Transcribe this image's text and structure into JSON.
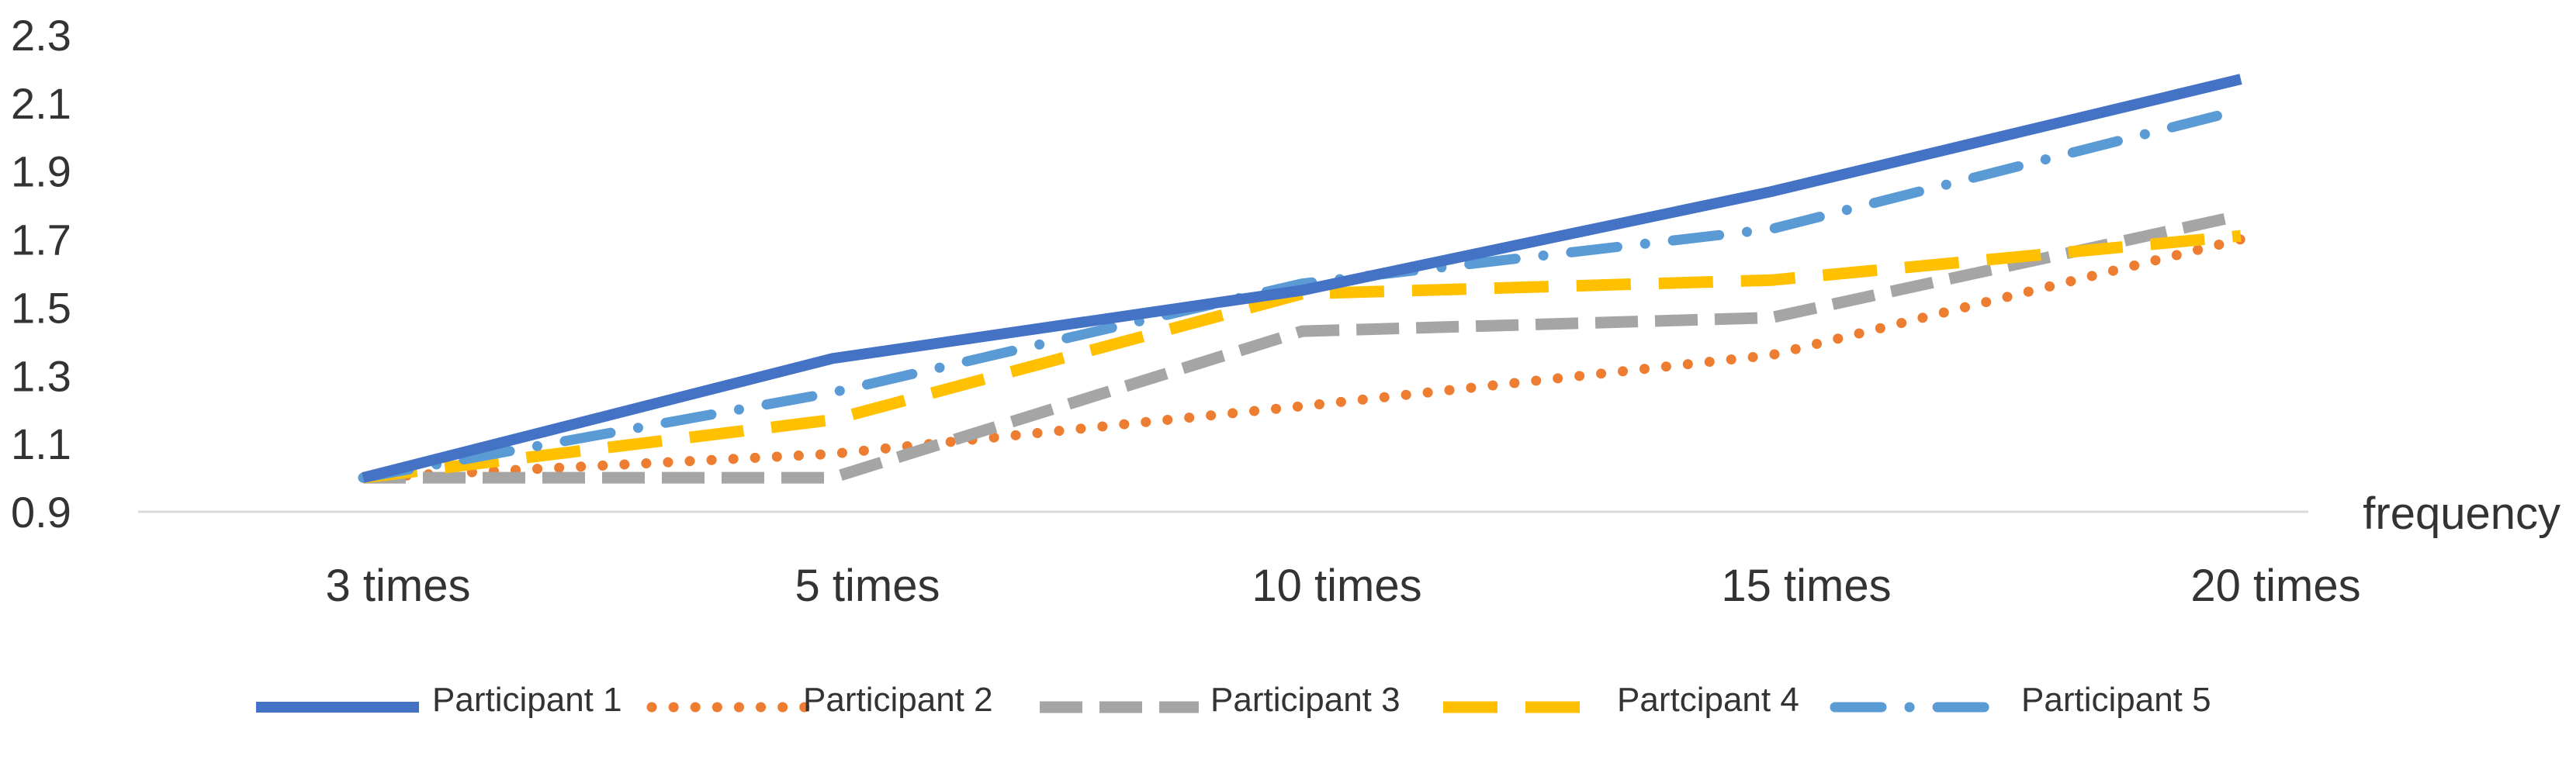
{
  "chart_data": {
    "type": "line",
    "title": "",
    "xlabel": "frequency",
    "ylabel": "",
    "categories": [
      "3 times",
      "5 times",
      "10 times",
      "15 times",
      "20 times"
    ],
    "ylim": [
      0.9,
      2.3
    ],
    "yticks": [
      "0.9",
      "1.1",
      "1.3",
      "1.5",
      "1.7",
      "1.9",
      "2.1",
      "2.3"
    ],
    "grid": false,
    "legend_position": "bottom",
    "series": [
      {
        "name": "Participant 1",
        "values": [
          1.0,
          1.35,
          1.55,
          1.84,
          2.17
        ],
        "color": "#4472C4",
        "style": "solid"
      },
      {
        "name": "Participant 2",
        "values": [
          1.0,
          1.07,
          1.21,
          1.36,
          1.7
        ],
        "color": "#ED7D31",
        "style": "dotted"
      },
      {
        "name": "Participant 3",
        "values": [
          1.0,
          1.0,
          1.43,
          1.47,
          1.77
        ],
        "color": "#A5A5A5",
        "style": "dashed"
      },
      {
        "name": "Partcipant 4",
        "values": [
          1.0,
          1.17,
          1.54,
          1.58,
          1.71
        ],
        "color": "#FFC000",
        "style": "long-dash"
      },
      {
        "name": "Participant 5",
        "values": [
          1.0,
          1.25,
          1.57,
          1.73,
          2.08
        ],
        "color": "#5B9BD5",
        "style": "dash-dot"
      }
    ]
  }
}
